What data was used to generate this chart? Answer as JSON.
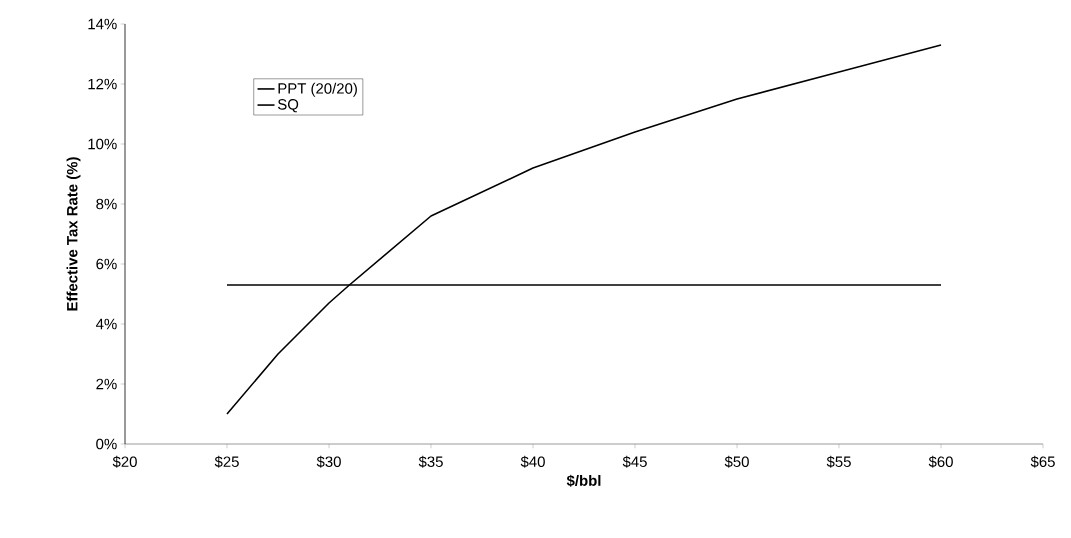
{
  "chart_data": {
    "type": "line",
    "xlabel": "$/bbl",
    "ylabel": "Effective Tax Rate (%)",
    "x": [
      25,
      27.5,
      30,
      31,
      35,
      37.5,
      40,
      45,
      50,
      55,
      60
    ],
    "series": [
      {
        "name": "PPT (20/20)",
        "color": "#000000",
        "values": [
          1.0,
          3.0,
          4.7,
          5.3,
          7.6,
          8.4,
          9.2,
          10.4,
          11.5,
          12.4,
          13.3
        ]
      },
      {
        "name": "SQ",
        "color": "#000000",
        "x": [
          25,
          60
        ],
        "values": [
          5.3,
          5.3
        ]
      }
    ],
    "xlim": [
      20,
      65
    ],
    "ylim": [
      0,
      14
    ],
    "xticks": [
      {
        "value": 20,
        "label": "$20"
      },
      {
        "value": 25,
        "label": "$25"
      },
      {
        "value": 30,
        "label": "$30"
      },
      {
        "value": 35,
        "label": "$35"
      },
      {
        "value": 40,
        "label": "$40"
      },
      {
        "value": 45,
        "label": "$45"
      },
      {
        "value": 50,
        "label": "$50"
      },
      {
        "value": 55,
        "label": "$55"
      },
      {
        "value": 60,
        "label": "$60"
      },
      {
        "value": 65,
        "label": "$65"
      }
    ],
    "yticks": [
      {
        "value": 0,
        "label": "0%"
      },
      {
        "value": 2,
        "label": "2%"
      },
      {
        "value": 4,
        "label": "4%"
      },
      {
        "value": 6,
        "label": "6%"
      },
      {
        "value": 8,
        "label": "8%"
      },
      {
        "value": 10,
        "label": "10%"
      },
      {
        "value": 12,
        "label": "12%"
      },
      {
        "value": 14,
        "label": "14%"
      }
    ],
    "legend": "top left",
    "grid": false,
    "marker": "none",
    "line_style": "solid"
  }
}
